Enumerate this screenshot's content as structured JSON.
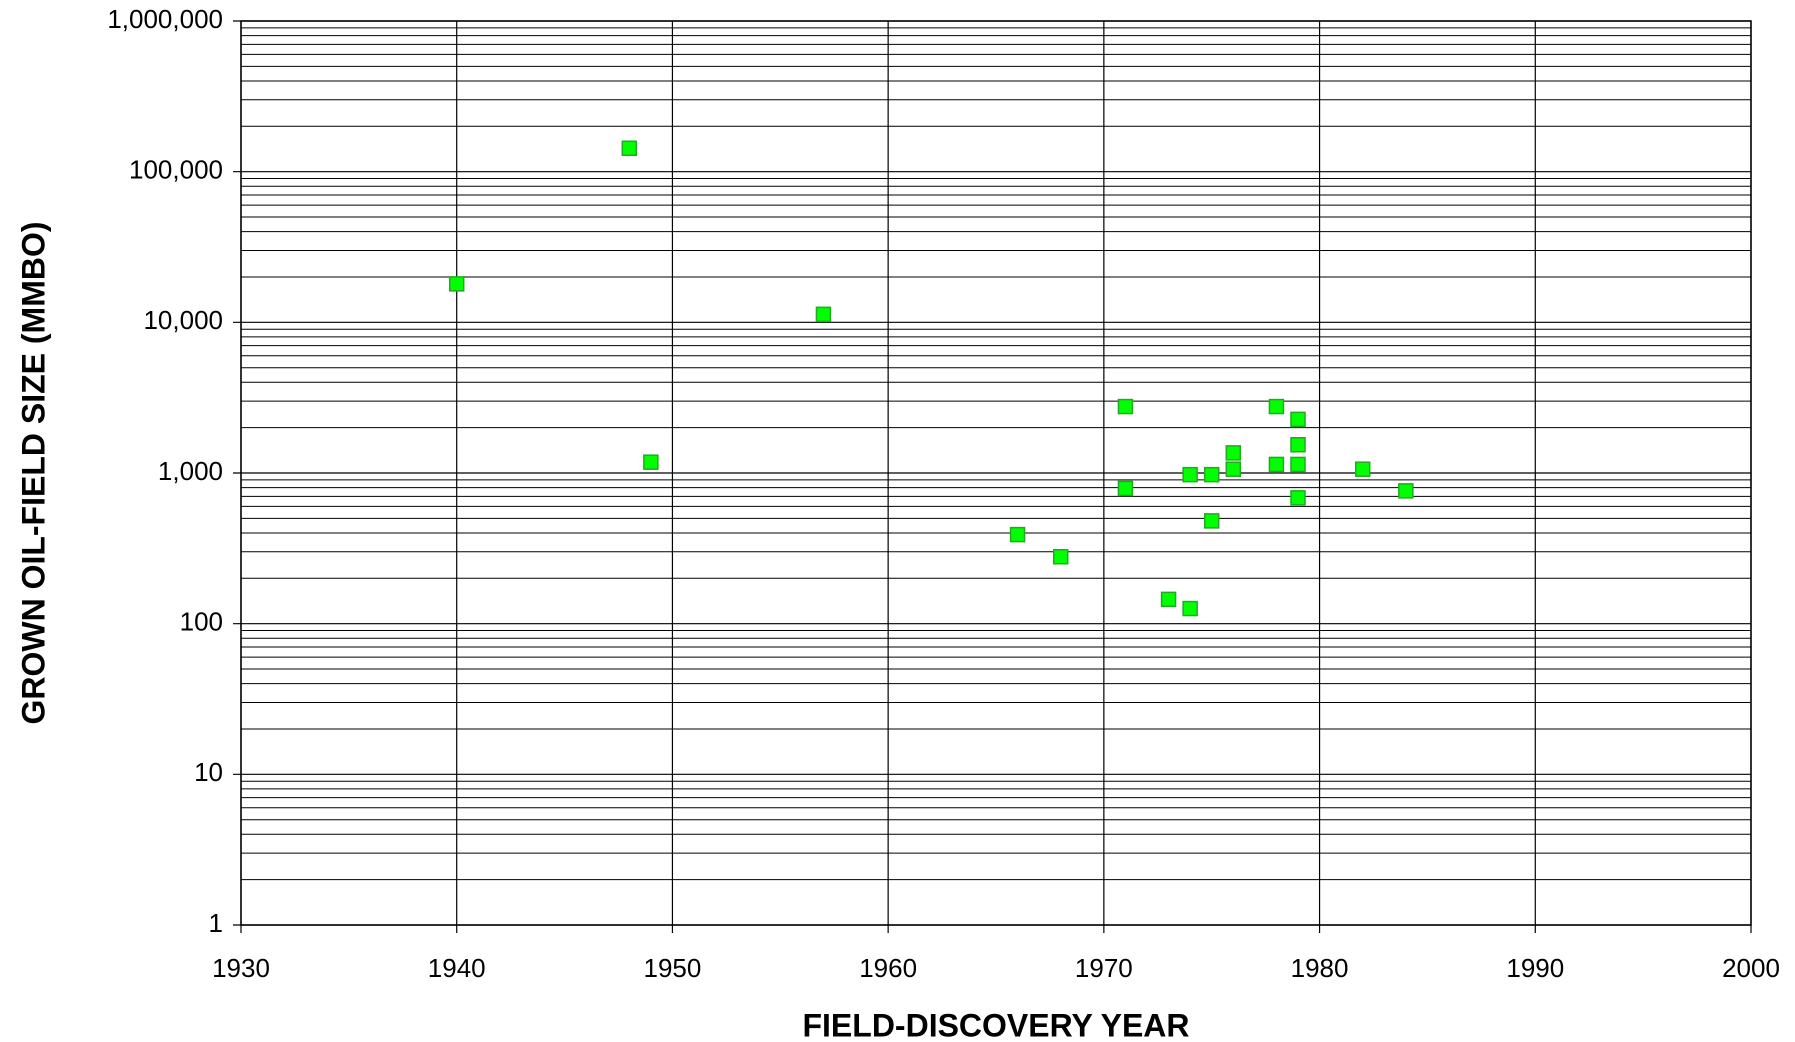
{
  "chart_data": {
    "type": "scatter",
    "x_label": "FIELD-DISCOVERY YEAR",
    "y_label": "GROWN OIL-FIELD SIZE (MMBO)",
    "color": "#00ff00",
    "log_y": true,
    "grid": true,
    "minor_grid": true,
    "xlim": [
      1930,
      2000
    ],
    "xticks": [
      1930,
      1940,
      1950,
      1960,
      1970,
      1980,
      1990,
      2000
    ],
    "ylim": [
      1,
      1000000
    ],
    "yticks": [
      1,
      10,
      100,
      {
        "value": 1000,
        "label": "1,000"
      },
      {
        "value": 10000,
        "label": "10,000"
      },
      {
        "value": 100000,
        "label": "100,000"
      },
      {
        "value": 1000000,
        "label": "1,000,000"
      }
    ],
    "x": [
      1940,
      1948,
      1949,
      1957,
      1966,
      1968,
      1971,
      1971,
      1973,
      1974,
      1974,
      1975,
      1975,
      1976,
      1976,
      1978,
      1978,
      1979,
      1979,
      1979,
      1979,
      1982,
      1984
    ],
    "values": [
      18000,
      143000,
      1180,
      11300,
      390,
      278,
      2760,
      790,
      145,
      126,
      975,
      975,
      481,
      1360,
      1060,
      2760,
      1140,
      2270,
      1540,
      1140,
      684,
      1060,
      761
    ]
  }
}
